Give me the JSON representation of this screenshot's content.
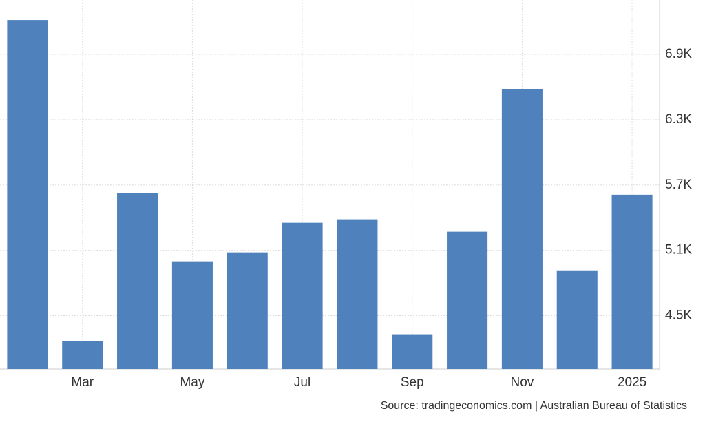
{
  "chart_data": {
    "type": "bar",
    "categories": [
      null,
      "Mar",
      null,
      "May",
      null,
      "Jul",
      null,
      "Sep",
      null,
      "Nov",
      null,
      "2025"
    ],
    "values": [
      7216,
      4266,
      5624,
      4999,
      5081,
      5353,
      5385,
      4329,
      5271,
      6579,
      4916,
      5611
    ],
    "color": "#4f81bd",
    "ylim": [
      4010,
      7400
    ],
    "yticks": [
      {
        "value": 4500,
        "label": "4.5K"
      },
      {
        "value": 5100,
        "label": "5.1K"
      },
      {
        "value": 5700,
        "label": "5.7K"
      },
      {
        "value": 6300,
        "label": "6.3K"
      },
      {
        "value": 6900,
        "label": "6.9K"
      }
    ],
    "grid": true,
    "source": "Source: tradingeconomics.com | Australian Bureau of Statistics"
  }
}
